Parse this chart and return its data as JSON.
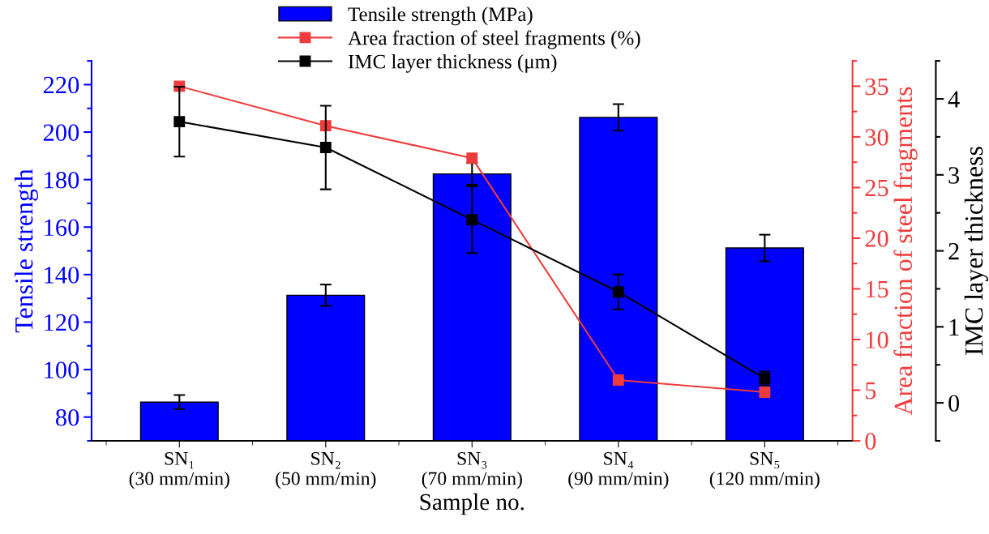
{
  "chart_data": {
    "type": "bar",
    "xlabel": "Sample no.",
    "ylabel": "Tensile strength",
    "y2label": "Area fraction of steel fragments",
    "y3label": "IMC layer thickness",
    "categories": [
      "SN₁\n(30 mm/min)",
      "SN₂\n(50 mm/min)",
      "SN₃\n(70 mm/min)",
      "SN₄\n(90 mm/min)",
      "SN₅\n(120 mm/min)"
    ],
    "series": [
      {
        "name": "Tensile strength (MPa)",
        "axis": "y",
        "color": "#0000ff",
        "values": [
          86.3,
          131.3,
          182.4,
          206.2,
          151.2
        ],
        "errors": [
          3,
          4.5,
          4.6,
          5.6,
          5.6
        ]
      },
      {
        "name": "Area fraction of steel fragments (%)",
        "type": "line",
        "axis": "y2",
        "color": "#ef3b3b",
        "marker": "square",
        "values": [
          35.0,
          31.1,
          27.9,
          6.0,
          4.8
        ]
      },
      {
        "name": "IMC layer thickness (μm)",
        "type": "line",
        "axis": "y3",
        "color": "#000000",
        "marker": "square",
        "values": [
          3.7,
          3.36,
          2.41,
          1.46,
          0.32
        ],
        "errors": [
          0.46,
          0.55,
          0.44,
          0.23,
          0.09
        ]
      }
    ],
    "ylim": [
      70,
      230
    ],
    "yticks": [
      80,
      100,
      120,
      140,
      160,
      180,
      200,
      220
    ],
    "y2lim": [
      0,
      37.5
    ],
    "y2ticks": [
      0,
      5,
      10,
      15,
      20,
      25,
      30,
      35
    ],
    "y3lim": [
      -0.5,
      4.5
    ],
    "y3ticks": [
      0,
      1,
      2,
      3,
      4
    ],
    "legend": "top",
    "grid": false
  }
}
